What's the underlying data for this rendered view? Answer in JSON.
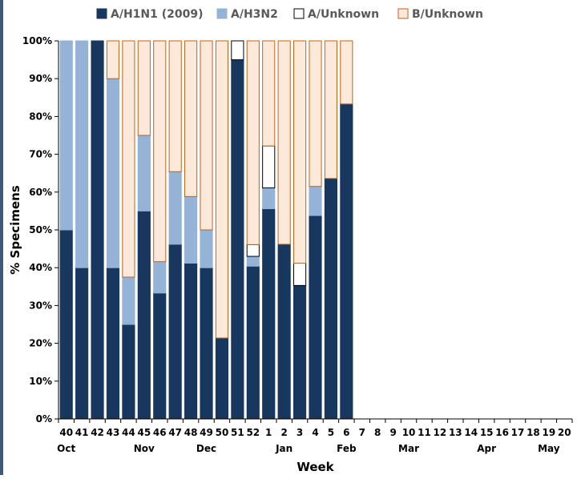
{
  "chart_data": {
    "type": "bar",
    "stacked": true,
    "xlabel": "Week",
    "ylabel": "% Specimens",
    "ylim": [
      0,
      100
    ],
    "yticks": [
      "0%",
      "10%",
      "20%",
      "30%",
      "40%",
      "50%",
      "60%",
      "70%",
      "80%",
      "90%",
      "100%"
    ],
    "grid": false,
    "legend_position": "top",
    "categories": [
      "40",
      "41",
      "42",
      "43",
      "44",
      "45",
      "46",
      "47",
      "48",
      "49",
      "50",
      "51",
      "52",
      "1",
      "2",
      "3",
      "4",
      "5",
      "6",
      "7",
      "8",
      "9",
      "10",
      "11",
      "12",
      "13",
      "14",
      "15",
      "16",
      "17",
      "18",
      "19",
      "20"
    ],
    "month_labels": [
      {
        "label": "Oct",
        "week": "40"
      },
      {
        "label": "Nov",
        "week": "45"
      },
      {
        "label": "Dec",
        "week": "49"
      },
      {
        "label": "Jan",
        "week": "2"
      },
      {
        "label": "Feb",
        "week": "6"
      },
      {
        "label": "Mar",
        "week": "10"
      },
      {
        "label": "Apr",
        "week": "15"
      },
      {
        "label": "May",
        "week": "19"
      }
    ],
    "series": [
      {
        "name": "A/H1N1 (2009)",
        "color": "#17375e",
        "stroke": "#17375e",
        "values": [
          50,
          40,
          100,
          40,
          25,
          55,
          33.3,
          46.2,
          41.2,
          40,
          21.4,
          95,
          40.4,
          55.6,
          46.2,
          35.3,
          53.8,
          63.6,
          83.3,
          null,
          null,
          null,
          null,
          null,
          null,
          null,
          null,
          null,
          null,
          null,
          null,
          null,
          null
        ]
      },
      {
        "name": "A/H3N2",
        "color": "#95b3d7",
        "stroke": "#95b3d7",
        "values": [
          50,
          60,
          0,
          50,
          12.5,
          20,
          8.3,
          19.2,
          17.6,
          10,
          0,
          0,
          2.6,
          5.5,
          0,
          0,
          7.7,
          0,
          0,
          null,
          null,
          null,
          null,
          null,
          null,
          null,
          null,
          null,
          null,
          null,
          null,
          null,
          null
        ]
      },
      {
        "name": "A/Unknown",
        "color": "#ffffff",
        "stroke": "#000000",
        "values": [
          0,
          0,
          0,
          0,
          0,
          0,
          0,
          0,
          0,
          0,
          0,
          5,
          3.1,
          11.1,
          0,
          5.9,
          0,
          0,
          0,
          null,
          null,
          null,
          null,
          null,
          null,
          null,
          null,
          null,
          null,
          null,
          null,
          null,
          null
        ]
      },
      {
        "name": "B/Unknown",
        "color": "#fde9d9",
        "stroke": "#c0631b",
        "values": [
          0,
          0,
          0,
          10,
          62.5,
          25,
          58.4,
          34.6,
          41.2,
          50,
          78.6,
          0,
          53.9,
          27.8,
          53.8,
          58.8,
          38.5,
          36.4,
          16.7,
          null,
          null,
          null,
          null,
          null,
          null,
          null,
          null,
          null,
          null,
          null,
          null,
          null,
          null
        ]
      }
    ]
  }
}
